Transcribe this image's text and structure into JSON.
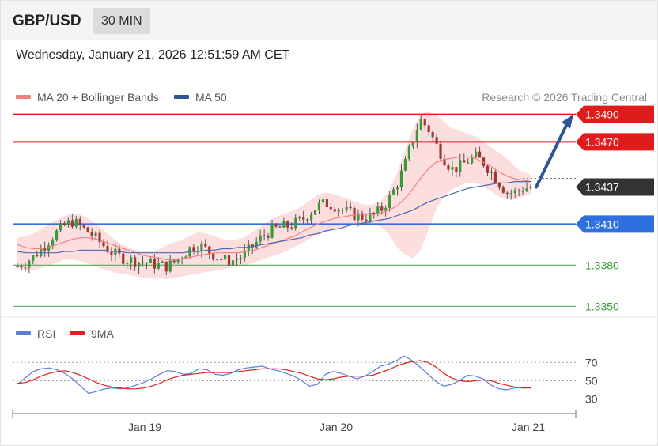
{
  "header": {
    "pair": "GBP/USD",
    "timeframe": "30 MIN"
  },
  "datetime": "Wednesday, January 21, 2026 12:51:59 AM CET",
  "legend": [
    {
      "label": "MA 20 + Bollinger Bands",
      "color": "#f08080"
    },
    {
      "label": "MA 50",
      "color": "#2f5597"
    }
  ],
  "credit": "Research © 2026 Trading Central",
  "rsi_legend": [
    {
      "label": "RSI",
      "color": "#5b7fd6"
    },
    {
      "label": "9MA",
      "color": "#e02020"
    }
  ],
  "chart_data": [
    {
      "type": "candlestick",
      "title": "GBP/USD 30 MIN",
      "ylim": [
        1.3345,
        1.3495
      ],
      "current_price": "1.3437",
      "x_ticks": [
        "Jan 19",
        "Jan 20",
        "Jan 21"
      ],
      "levels": [
        {
          "value": 1.349,
          "label": "1.3490",
          "kind": "resistance",
          "color": "#e01b1b"
        },
        {
          "value": 1.347,
          "label": "1.3470",
          "kind": "resistance",
          "color": "#e01b1b"
        },
        {
          "value": 1.341,
          "label": "1.3410",
          "kind": "pivot",
          "color": "#2f6fe0"
        },
        {
          "value": 1.338,
          "label": "1.3380",
          "kind": "support",
          "color": "#58a958"
        },
        {
          "value": 1.335,
          "label": "1.3350",
          "kind": "support",
          "color": "#58a958"
        }
      ],
      "close_path": [
        1.3379,
        1.3382,
        1.3386,
        1.3392,
        1.3398,
        1.3404,
        1.3409,
        1.3412,
        1.3408,
        1.3404,
        1.3399,
        1.3394,
        1.3389,
        1.3386,
        1.3384,
        1.3383,
        1.3382,
        1.3381,
        1.338,
        1.3379,
        1.3383,
        1.3388,
        1.3393,
        1.3395,
        1.3391,
        1.3387,
        1.3384,
        1.3383,
        1.3385,
        1.3389,
        1.3395,
        1.3401,
        1.3405,
        1.3407,
        1.3408,
        1.341,
        1.3413,
        1.3418,
        1.3423,
        1.3425,
        1.3424,
        1.3421,
        1.3418,
        1.3416,
        1.3415,
        1.3416,
        1.342,
        1.3428,
        1.3438,
        1.3452,
        1.347,
        1.3486,
        1.348,
        1.3468,
        1.3458,
        1.345,
        1.3452,
        1.3456,
        1.3459,
        1.3455,
        1.3448,
        1.344,
        1.3433,
        1.3433,
        1.3436,
        1.3437
      ],
      "series": [
        {
          "name": "MA 20",
          "values": [
            1.3395,
            1.3393,
            1.3392,
            1.3392,
            1.3393,
            1.3395,
            1.3397,
            1.3399,
            1.34,
            1.34,
            1.3399,
            1.3397,
            1.3395,
            1.3393,
            1.3391,
            1.3389,
            1.3387,
            1.3386,
            1.3385,
            1.3384,
            1.3384,
            1.3385,
            1.3386,
            1.3387,
            1.3388,
            1.3389,
            1.3389,
            1.3389,
            1.3389,
            1.339,
            1.3391,
            1.3393,
            1.3395,
            1.3397,
            1.3399,
            1.3401,
            1.3404,
            1.3407,
            1.341,
            1.3412,
            1.3414,
            1.3415,
            1.3416,
            1.3417,
            1.3417,
            1.3417,
            1.3418,
            1.342,
            1.3423,
            1.3428,
            1.3435,
            1.3443,
            1.345,
            1.3455,
            1.3457,
            1.3458,
            1.3459,
            1.3459,
            1.3458,
            1.3455,
            1.3452,
            1.3448,
            1.3445,
            1.3443,
            1.3442,
            1.3441
          ]
        },
        {
          "name": "MA 50",
          "values": [
            1.339,
            1.3389,
            1.3389,
            1.3389,
            1.3389,
            1.3389,
            1.339,
            1.339,
            1.3391,
            1.3391,
            1.3391,
            1.3391,
            1.339,
            1.339,
            1.3389,
            1.3389,
            1.3389,
            1.3389,
            1.3389,
            1.3389,
            1.3389,
            1.3389,
            1.339,
            1.339,
            1.3391,
            1.3391,
            1.3392,
            1.3392,
            1.3393,
            1.3393,
            1.3394,
            1.3395,
            1.3396,
            1.3397,
            1.3398,
            1.3399,
            1.34,
            1.3402,
            1.3403,
            1.3405,
            1.3406,
            1.3407,
            1.3409,
            1.341,
            1.3411,
            1.3412,
            1.3413,
            1.3414,
            1.3416,
            1.3418,
            1.342,
            1.3423,
            1.3426,
            1.3428,
            1.343,
            1.3432,
            1.3434,
            1.3436,
            1.3437,
            1.3438,
            1.3439,
            1.344,
            1.344,
            1.3441,
            1.3441,
            1.3441
          ]
        }
      ],
      "bollinger_band": {
        "upper": [
          1.34,
          1.3401,
          1.3403,
          1.3406,
          1.341,
          1.3413,
          1.3416,
          1.3418,
          1.3417,
          1.3414,
          1.341,
          1.3405,
          1.34,
          1.3396,
          1.3393,
          1.3391,
          1.339,
          1.339,
          1.3392,
          1.3395,
          1.3397,
          1.3399,
          1.3402,
          1.3404,
          1.3403,
          1.3401,
          1.3399,
          1.3398,
          1.3399,
          1.3401,
          1.3405,
          1.3409,
          1.3413,
          1.3416,
          1.3418,
          1.342,
          1.3423,
          1.3427,
          1.3431,
          1.3433,
          1.3432,
          1.343,
          1.3428,
          1.3426,
          1.3424,
          1.3424,
          1.3427,
          1.3434,
          1.3446,
          1.3462,
          1.3478,
          1.349,
          1.3492,
          1.349,
          1.3485,
          1.348,
          1.3478,
          1.3476,
          1.3474,
          1.347,
          1.3466,
          1.3462,
          1.3458,
          1.3452,
          1.3448,
          1.3446
        ],
        "lower": [
          1.3378,
          1.3376,
          1.3376,
          1.3378,
          1.338,
          1.3382,
          1.3384,
          1.3384,
          1.3383,
          1.3381,
          1.3379,
          1.3377,
          1.3375,
          1.3374,
          1.3373,
          1.3372,
          1.3371,
          1.3371,
          1.337,
          1.337,
          1.3371,
          1.3372,
          1.3373,
          1.3374,
          1.3375,
          1.3376,
          1.3377,
          1.3378,
          1.3379,
          1.338,
          1.3382,
          1.3384,
          1.3386,
          1.3388,
          1.339,
          1.3393,
          1.3396,
          1.3399,
          1.3402,
          1.3404,
          1.3406,
          1.3408,
          1.3409,
          1.341,
          1.341,
          1.341,
          1.3408,
          1.3403,
          1.3394,
          1.3388,
          1.3385,
          1.339,
          1.3405,
          1.342,
          1.343,
          1.3435,
          1.3438,
          1.344,
          1.344,
          1.3438,
          1.3434,
          1.343,
          1.3428,
          1.3428,
          1.343,
          1.3432
        ]
      },
      "projection": {
        "from": 1.3437,
        "to": 1.349
      }
    },
    {
      "type": "line",
      "title": "RSI",
      "ylim": [
        20,
        85
      ],
      "y_ticks": [
        70,
        50,
        30
      ],
      "series": [
        {
          "name": "RSI",
          "values": [
            46,
            53,
            60,
            63,
            64,
            62,
            58,
            52,
            44,
            36,
            38,
            41,
            42,
            41,
            42,
            45,
            48,
            52,
            57,
            61,
            60,
            57,
            58,
            63,
            62,
            57,
            56,
            58,
            62,
            64,
            65,
            66,
            63,
            61,
            58,
            55,
            50,
            44,
            46,
            57,
            60,
            58,
            55,
            52,
            55,
            60,
            66,
            68,
            72,
            77,
            72,
            65,
            57,
            49,
            44,
            46,
            50,
            56,
            55,
            52,
            45,
            41,
            40,
            42,
            43,
            43
          ]
        },
        {
          "name": "9MA",
          "values": [
            47,
            48,
            51,
            55,
            58,
            60,
            61,
            59,
            56,
            52,
            48,
            45,
            43,
            42,
            41,
            41,
            42,
            44,
            47,
            51,
            54,
            56,
            57,
            58,
            59,
            59,
            59,
            59,
            60,
            61,
            62,
            63,
            63,
            63,
            62,
            60,
            58,
            55,
            52,
            51,
            52,
            54,
            55,
            55,
            55,
            56,
            59,
            62,
            66,
            69,
            71,
            72,
            70,
            65,
            58,
            53,
            50,
            49,
            50,
            51,
            50,
            47,
            45,
            43,
            42,
            42
          ]
        }
      ]
    }
  ]
}
